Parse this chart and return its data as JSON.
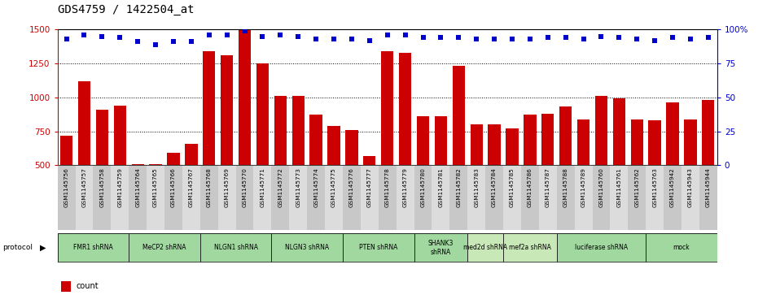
{
  "title": "GDS4759 / 1422504_at",
  "samples": [
    "GSM1145756",
    "GSM1145757",
    "GSM1145758",
    "GSM1145759",
    "GSM1145764",
    "GSM1145765",
    "GSM1145766",
    "GSM1145767",
    "GSM1145768",
    "GSM1145769",
    "GSM1145770",
    "GSM1145771",
    "GSM1145772",
    "GSM1145773",
    "GSM1145774",
    "GSM1145775",
    "GSM1145776",
    "GSM1145777",
    "GSM1145778",
    "GSM1145779",
    "GSM1145780",
    "GSM1145781",
    "GSM1145782",
    "GSM1145783",
    "GSM1145784",
    "GSM1145785",
    "GSM1145786",
    "GSM1145787",
    "GSM1145788",
    "GSM1145789",
    "GSM1145760",
    "GSM1145761",
    "GSM1145762",
    "GSM1145763",
    "GSM1145942",
    "GSM1145943",
    "GSM1145944"
  ],
  "counts": [
    720,
    1120,
    910,
    940,
    510,
    510,
    590,
    660,
    1340,
    1310,
    1500,
    1250,
    1010,
    1010,
    870,
    790,
    760,
    570,
    1340,
    1330,
    860,
    860,
    1230,
    800,
    800,
    770,
    870,
    880,
    930,
    840,
    1010,
    990,
    840,
    830,
    960,
    840,
    980
  ],
  "percentiles": [
    93,
    96,
    95,
    94,
    91,
    89,
    91,
    91,
    96,
    96,
    99,
    95,
    96,
    95,
    93,
    93,
    93,
    92,
    96,
    96,
    94,
    94,
    94,
    93,
    93,
    93,
    93,
    94,
    94,
    93,
    95,
    94,
    93,
    92,
    94,
    93,
    94
  ],
  "protocols": [
    {
      "label": "FMR1 shRNA",
      "start": 0,
      "end": 4,
      "color": "#a0d8a0"
    },
    {
      "label": "MeCP2 shRNA",
      "start": 4,
      "end": 8,
      "color": "#a0d8a0"
    },
    {
      "label": "NLGN1 shRNA",
      "start": 8,
      "end": 12,
      "color": "#a0d8a0"
    },
    {
      "label": "NLGN3 shRNA",
      "start": 12,
      "end": 16,
      "color": "#a0d8a0"
    },
    {
      "label": "PTEN shRNA",
      "start": 16,
      "end": 20,
      "color": "#a0d8a0"
    },
    {
      "label": "SHANK3\nshRNA",
      "start": 20,
      "end": 23,
      "color": "#a0d8a0"
    },
    {
      "label": "med2d shRNA",
      "start": 23,
      "end": 25,
      "color": "#c8e8b8"
    },
    {
      "label": "mef2a shRNA",
      "start": 25,
      "end": 28,
      "color": "#c8e8b8"
    },
    {
      "label": "luciferase shRNA",
      "start": 28,
      "end": 33,
      "color": "#a0d8a0"
    },
    {
      "label": "mock",
      "start": 33,
      "end": 37,
      "color": "#a0d8a0"
    }
  ],
  "ylim_left": [
    500,
    1500
  ],
  "ylim_right": [
    0,
    100
  ],
  "yticks_left": [
    500,
    750,
    1000,
    1250,
    1500
  ],
  "yticks_right": [
    0,
    25,
    50,
    75,
    100
  ],
  "bar_color": "#CC0000",
  "dot_color": "#0000CC",
  "bg_color": "#ffffff",
  "title_fontsize": 10,
  "axis_label_color_left": "#CC0000",
  "axis_label_color_right": "#0000CC"
}
